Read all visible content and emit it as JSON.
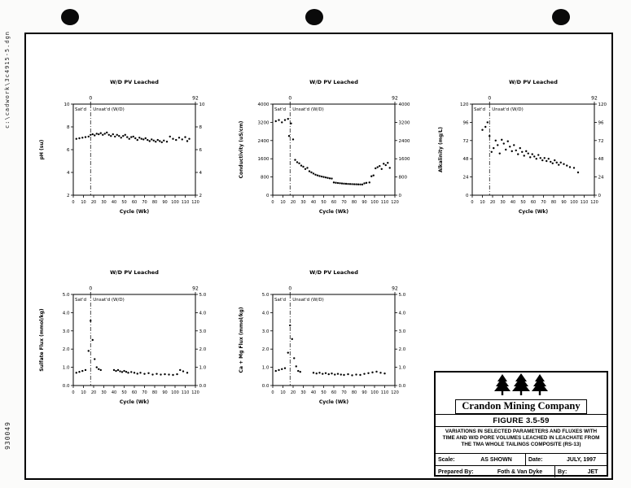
{
  "stamps": {
    "cad_path": "c:\\cadwork\\3c4915-5.dgn",
    "doc_number": "930049"
  },
  "title_block": {
    "company": "Crandon Mining Company",
    "figure_label": "FIGURE 3.5-59",
    "description": "VARIATIONS IN SELECTED PARAMETERS AND FLUXES WITH\nTIME AND W/D PORE VOLUMES LEACHED IN LEACHATE FROM\nTHE TMA WHOLE TAILINGS COMPOSITE (RS-13)",
    "scale_label": "Scale:",
    "scale_value": "AS SHOWN",
    "date_label": "Date:",
    "date_value": "JULY, 1997",
    "prepared_label": "Prepared By:",
    "prepared_value": "Foth & Van Dyke",
    "by_label": "By:",
    "by_value": "JET"
  },
  "chart_data": [
    {
      "type": "scatter",
      "title": "W/D PV Leached",
      "xlabel": "Cycle (Wk)",
      "ylabel": "pH (su)",
      "xlim": [
        0,
        120
      ],
      "ylim": [
        2,
        10
      ],
      "xticks": [
        0,
        10,
        20,
        30,
        40,
        50,
        60,
        70,
        80,
        90,
        100,
        110,
        120
      ],
      "yticks": [
        2,
        4,
        6,
        8,
        10
      ],
      "ytick_labels": [
        "2",
        "4",
        "6",
        "8",
        "10"
      ],
      "top_axis": {
        "ticks": [
          {
            "x": 17,
            "label": "0"
          },
          {
            "x": 120,
            "label": "92"
          }
        ]
      },
      "divider_x": 17,
      "zone_labels": {
        "left": "Sat'd",
        "right": "Unsat'd (W/D)"
      },
      "points": [
        [
          3,
          6.95
        ],
        [
          6,
          7.0
        ],
        [
          9,
          7.05
        ],
        [
          12,
          7.1
        ],
        [
          15,
          7.15
        ],
        [
          17,
          7.3
        ],
        [
          19,
          7.35
        ],
        [
          21,
          7.25
        ],
        [
          23,
          7.4
        ],
        [
          25,
          7.35
        ],
        [
          27,
          7.45
        ],
        [
          29,
          7.3
        ],
        [
          31,
          7.4
        ],
        [
          33,
          7.5
        ],
        [
          35,
          7.3
        ],
        [
          37,
          7.2
        ],
        [
          39,
          7.35
        ],
        [
          41,
          7.15
        ],
        [
          43,
          7.3
        ],
        [
          45,
          7.2
        ],
        [
          47,
          7.05
        ],
        [
          49,
          7.2
        ],
        [
          51,
          7.3
        ],
        [
          53,
          7.1
        ],
        [
          55,
          6.95
        ],
        [
          57,
          7.1
        ],
        [
          59,
          7.15
        ],
        [
          61,
          7.0
        ],
        [
          63,
          6.85
        ],
        [
          65,
          7.05
        ],
        [
          67,
          6.95
        ],
        [
          69,
          6.9
        ],
        [
          71,
          7.0
        ],
        [
          73,
          6.85
        ],
        [
          75,
          6.75
        ],
        [
          77,
          6.9
        ],
        [
          79,
          6.8
        ],
        [
          81,
          6.7
        ],
        [
          83,
          6.85
        ],
        [
          85,
          6.75
        ],
        [
          87,
          6.65
        ],
        [
          89,
          6.8
        ],
        [
          92,
          6.7
        ],
        [
          95,
          7.15
        ],
        [
          98,
          6.95
        ],
        [
          101,
          6.85
        ],
        [
          104,
          7.05
        ],
        [
          107,
          6.9
        ],
        [
          110,
          7.1
        ],
        [
          112,
          6.75
        ],
        [
          114,
          6.95
        ]
      ]
    },
    {
      "type": "scatter",
      "title": "W/D PV Leached",
      "xlabel": "Cycle (Wk)",
      "ylabel": "Conductivity (uS/cm)",
      "xlim": [
        0,
        120
      ],
      "ylim": [
        0,
        4000
      ],
      "xticks": [
        0,
        10,
        20,
        30,
        40,
        50,
        60,
        70,
        80,
        90,
        100,
        110,
        120
      ],
      "yticks": [
        0,
        800,
        1600,
        2400,
        3200,
        4000
      ],
      "ytick_labels": [
        "0",
        "800",
        "1600",
        "2400",
        "3200",
        "4000"
      ],
      "top_axis": {
        "ticks": [
          {
            "x": 17,
            "label": "0"
          },
          {
            "x": 120,
            "label": "92"
          }
        ]
      },
      "divider_x": 17,
      "zone_labels": {
        "left": "Sat'd",
        "right": "Unsat'd (W/D)"
      },
      "points": [
        [
          3,
          3250
        ],
        [
          6,
          3300
        ],
        [
          9,
          3200
        ],
        [
          12,
          3300
        ],
        [
          15,
          3350
        ],
        [
          16,
          2600
        ],
        [
          18,
          3150
        ],
        [
          20,
          2450
        ],
        [
          22,
          1550
        ],
        [
          24,
          1450
        ],
        [
          26,
          1400
        ],
        [
          28,
          1300
        ],
        [
          30,
          1250
        ],
        [
          32,
          1150
        ],
        [
          34,
          1200
        ],
        [
          36,
          1050
        ],
        [
          38,
          1000
        ],
        [
          40,
          950
        ],
        [
          42,
          900
        ],
        [
          44,
          870
        ],
        [
          46,
          840
        ],
        [
          48,
          820
        ],
        [
          50,
          800
        ],
        [
          52,
          780
        ],
        [
          54,
          760
        ],
        [
          56,
          740
        ],
        [
          58,
          730
        ],
        [
          60,
          560
        ],
        [
          62,
          545
        ],
        [
          64,
          535
        ],
        [
          66,
          525
        ],
        [
          68,
          515
        ],
        [
          70,
          505
        ],
        [
          72,
          500
        ],
        [
          74,
          495
        ],
        [
          76,
          490
        ],
        [
          78,
          485
        ],
        [
          80,
          480
        ],
        [
          82,
          478
        ],
        [
          84,
          475
        ],
        [
          86,
          472
        ],
        [
          88,
          470
        ],
        [
          90,
          520
        ],
        [
          92,
          540
        ],
        [
          95,
          560
        ],
        [
          97,
          830
        ],
        [
          99,
          870
        ],
        [
          101,
          1180
        ],
        [
          103,
          1230
        ],
        [
          105,
          1280
        ],
        [
          107,
          1150
        ],
        [
          109,
          1380
        ],
        [
          111,
          1320
        ],
        [
          113,
          1420
        ],
        [
          115,
          1200
        ]
      ]
    },
    {
      "type": "scatter",
      "title": "W/D PV Leached",
      "xlabel": "Cycle (Wk)",
      "ylabel": "Alkalinity (mg/L)",
      "xlim": [
        0,
        120
      ],
      "ylim": [
        0,
        120
      ],
      "xticks": [
        0,
        10,
        20,
        30,
        40,
        50,
        60,
        70,
        80,
        90,
        100,
        110,
        120
      ],
      "yticks": [
        0,
        24,
        48,
        72,
        96,
        120
      ],
      "ytick_labels": [
        "0",
        "24",
        "48",
        "72",
        "96",
        "120"
      ],
      "top_axis": {
        "ticks": [
          {
            "x": 17,
            "label": "0"
          },
          {
            "x": 120,
            "label": "92"
          }
        ]
      },
      "divider_x": 17,
      "zone_labels": {
        "left": "Sat'd",
        "right": "Unsat'd (W/D)"
      },
      "points": [
        [
          10,
          86
        ],
        [
          13,
          90
        ],
        [
          15,
          96
        ],
        [
          17,
          78
        ],
        [
          19,
          57
        ],
        [
          21,
          62
        ],
        [
          23,
          72
        ],
        [
          25,
          66
        ],
        [
          27,
          55
        ],
        [
          29,
          73
        ],
        [
          31,
          68
        ],
        [
          33,
          60
        ],
        [
          35,
          71
        ],
        [
          37,
          64
        ],
        [
          39,
          58
        ],
        [
          41,
          66
        ],
        [
          43,
          59
        ],
        [
          45,
          54
        ],
        [
          47,
          62
        ],
        [
          49,
          57
        ],
        [
          51,
          52
        ],
        [
          53,
          58
        ],
        [
          55,
          55
        ],
        [
          57,
          50
        ],
        [
          59,
          54
        ],
        [
          61,
          51
        ],
        [
          63,
          48
        ],
        [
          65,
          53
        ],
        [
          67,
          49
        ],
        [
          69,
          46
        ],
        [
          71,
          49
        ],
        [
          73,
          45
        ],
        [
          75,
          48
        ],
        [
          77,
          44
        ],
        [
          79,
          42
        ],
        [
          81,
          46
        ],
        [
          83,
          43
        ],
        [
          85,
          40
        ],
        [
          87,
          43
        ],
        [
          90,
          41
        ],
        [
          93,
          39
        ],
        [
          96,
          37
        ],
        [
          100,
          36
        ],
        [
          104,
          30
        ]
      ]
    },
    {
      "type": "scatter",
      "title": "W/D PV Leached",
      "xlabel": "Cycle (Wk)",
      "ylabel": "Sulfate Flux (mmol/kg)",
      "xlim": [
        0,
        120
      ],
      "ylim": [
        0,
        5
      ],
      "xticks": [
        0,
        10,
        20,
        30,
        40,
        50,
        60,
        70,
        80,
        90,
        100,
        110,
        120
      ],
      "yticks": [
        0,
        1,
        2,
        3,
        4,
        5
      ],
      "ytick_labels": [
        "0.0",
        "1.0",
        "2.0",
        "3.0",
        "4.0",
        "5.0"
      ],
      "top_axis": {
        "ticks": [
          {
            "x": 17,
            "label": "0"
          },
          {
            "x": 120,
            "label": "92"
          }
        ]
      },
      "divider_x": 17,
      "zone_labels": {
        "left": "Sat'd",
        "right": "Unsat'd (W/D)"
      },
      "points": [
        [
          3,
          0.7
        ],
        [
          6,
          0.75
        ],
        [
          9,
          0.8
        ],
        [
          12,
          0.85
        ],
        [
          15,
          1.9
        ],
        [
          17,
          3.55
        ],
        [
          19,
          2.5
        ],
        [
          21,
          1.45
        ],
        [
          23,
          1.0
        ],
        [
          25,
          0.9
        ],
        [
          27,
          0.85
        ],
        [
          40,
          0.85
        ],
        [
          42,
          0.8
        ],
        [
          44,
          0.85
        ],
        [
          46,
          0.78
        ],
        [
          48,
          0.74
        ],
        [
          50,
          0.8
        ],
        [
          52,
          0.75
        ],
        [
          54,
          0.7
        ],
        [
          57,
          0.74
        ],
        [
          60,
          0.7
        ],
        [
          63,
          0.65
        ],
        [
          66,
          0.7
        ],
        [
          70,
          0.64
        ],
        [
          74,
          0.68
        ],
        [
          78,
          0.6
        ],
        [
          82,
          0.64
        ],
        [
          86,
          0.6
        ],
        [
          90,
          0.62
        ],
        [
          94,
          0.6
        ],
        [
          98,
          0.58
        ],
        [
          102,
          0.62
        ],
        [
          105,
          0.85
        ],
        [
          108,
          0.78
        ],
        [
          112,
          0.7
        ]
      ]
    },
    {
      "type": "scatter",
      "title": "W/D PV Leached",
      "xlabel": "Cycle (Wk)",
      "ylabel": "Ca + Mg Flux (mmol/kg)",
      "xlim": [
        0,
        120
      ],
      "ylim": [
        0,
        5
      ],
      "xticks": [
        0,
        10,
        20,
        30,
        40,
        50,
        60,
        70,
        80,
        90,
        100,
        110,
        120
      ],
      "yticks": [
        0,
        1,
        2,
        3,
        4,
        5
      ],
      "ytick_labels": [
        "0.0",
        "1.0",
        "2.0",
        "3.0",
        "4.0",
        "5.0"
      ],
      "top_axis": {
        "ticks": [
          {
            "x": 17,
            "label": "0"
          },
          {
            "x": 120,
            "label": "92"
          }
        ]
      },
      "divider_x": 17,
      "zone_labels": {
        "left": "Sat'd",
        "right": "Unsat'd (W/D)"
      },
      "points": [
        [
          3,
          0.8
        ],
        [
          6,
          0.85
        ],
        [
          9,
          0.9
        ],
        [
          12,
          0.95
        ],
        [
          15,
          1.8
        ],
        [
          17,
          3.3
        ],
        [
          19,
          2.55
        ],
        [
          21,
          1.5
        ],
        [
          23,
          1.05
        ],
        [
          25,
          0.8
        ],
        [
          27,
          0.75
        ],
        [
          40,
          0.7
        ],
        [
          43,
          0.66
        ],
        [
          46,
          0.7
        ],
        [
          49,
          0.64
        ],
        [
          52,
          0.68
        ],
        [
          55,
          0.62
        ],
        [
          58,
          0.66
        ],
        [
          61,
          0.6
        ],
        [
          64,
          0.64
        ],
        [
          67,
          0.6
        ],
        [
          70,
          0.58
        ],
        [
          74,
          0.62
        ],
        [
          78,
          0.56
        ],
        [
          82,
          0.6
        ],
        [
          86,
          0.58
        ],
        [
          90,
          0.64
        ],
        [
          94,
          0.68
        ],
        [
          98,
          0.72
        ],
        [
          102,
          0.76
        ],
        [
          106,
          0.7
        ],
        [
          110,
          0.66
        ]
      ]
    }
  ]
}
